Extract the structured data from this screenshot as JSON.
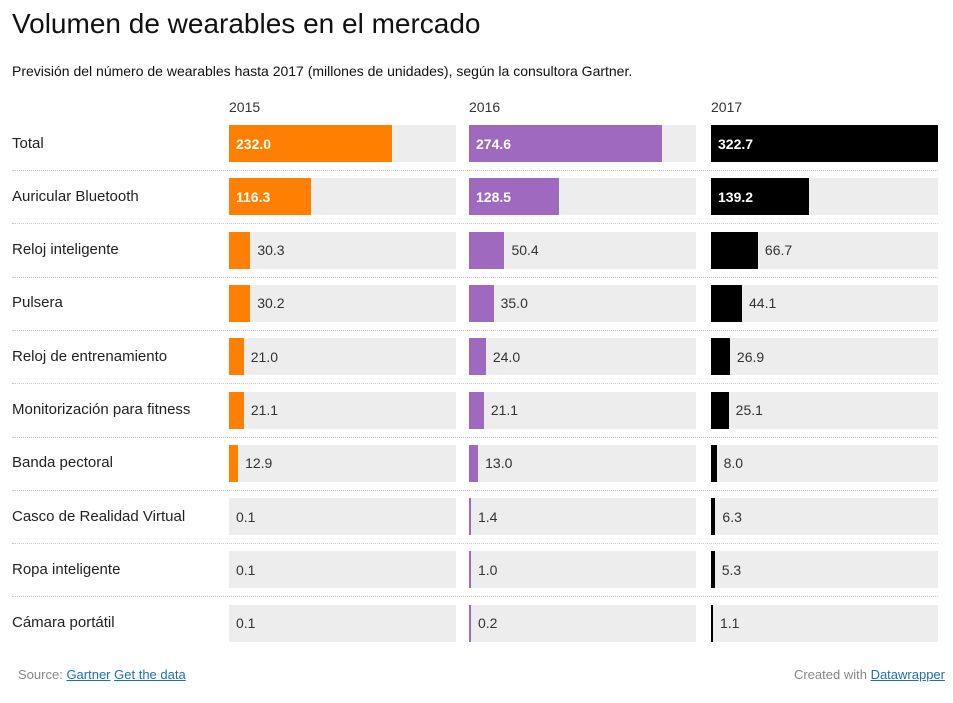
{
  "title": "Volumen de wearables en el mercado",
  "subtitle": "Previsión del número de wearables hasta 2017 (millones de unidades), según la consultora Gartner.",
  "footer": {
    "source_label": "Source:",
    "source_link": "Gartner",
    "data_link": "Get the data",
    "created_label": "Created with",
    "created_link": "Datawrapper"
  },
  "colors": {
    "2015": "#ff8000",
    "2016": "#9e69bf",
    "2017": "#000000"
  },
  "chart_data": {
    "type": "bar",
    "title": "Volumen de wearables en el mercado",
    "subtitle": "Previsión del número de wearables hasta 2017 (millones de unidades), según la consultora Gartner.",
    "xlim": [
      0,
      322.7
    ],
    "categories": [
      "Total",
      "Auricular Bluetooth",
      "Reloj inteligente",
      "Pulsera",
      "Reloj de entrenamiento",
      "Monitorización para fitness",
      "Banda pectoral",
      "Casco de Realidad Virtual",
      "Ropa inteligente",
      "Cámara portátil"
    ],
    "series": [
      {
        "name": "2015",
        "values": [
          232.0,
          116.3,
          30.3,
          30.2,
          21.0,
          21.1,
          12.9,
          0.1,
          0.1,
          0.1
        ],
        "labels": [
          "232.0",
          "116.3",
          "30.3",
          "30.2",
          "21.0",
          "21.1",
          "12.9",
          "0.1",
          "0.1",
          "0.1"
        ]
      },
      {
        "name": "2016",
        "values": [
          274.6,
          128.5,
          50.4,
          35.0,
          24.0,
          21.1,
          13.0,
          1.4,
          1.0,
          0.2
        ],
        "labels": [
          "274.6",
          "128.5",
          "50.4",
          "35.0",
          "24.0",
          "21.1",
          "13.0",
          "1.4",
          "1.0",
          "0.2"
        ]
      },
      {
        "name": "2017",
        "values": [
          322.7,
          139.2,
          66.7,
          44.1,
          26.9,
          25.1,
          8.0,
          6.3,
          5.3,
          1.1
        ],
        "labels": [
          "322.7",
          "139.2",
          "66.7",
          "44.1",
          "26.9",
          "25.1",
          "8.0",
          "6.3",
          "5.3",
          "1.1"
        ]
      }
    ]
  }
}
